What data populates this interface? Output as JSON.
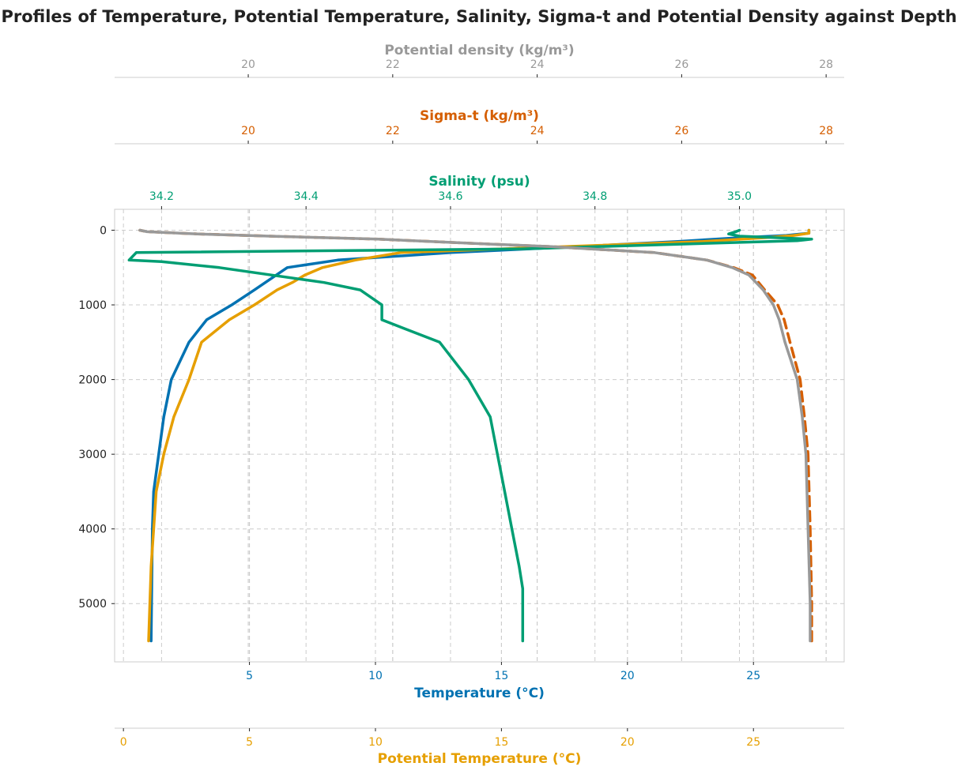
{
  "chart_data": {
    "type": "line",
    "title": "Profiles of Temperature, Potential Temperature, Salinity, Sigma-t and Potential Density against Depth",
    "grid": true,
    "y_axis": {
      "label": "",
      "range": [
        5780,
        -280
      ],
      "inverted": true,
      "ticks": [
        0,
        1000,
        2000,
        3000,
        4000,
        5000
      ]
    },
    "axes": [
      {
        "id": "temperature",
        "label": "Temperature (°C)",
        "position": "bottom",
        "color": "#0072b2",
        "range": [
          -0.35,
          28.6
        ],
        "ticks": [
          5,
          10,
          15,
          20,
          25
        ]
      },
      {
        "id": "potential_temperature",
        "label": "Potential Temperature (°C)",
        "position": "bottom-offset",
        "color": "#e69f00",
        "range": [
          -0.35,
          28.6
        ],
        "ticks": [
          0,
          5,
          10,
          15,
          20,
          25
        ]
      },
      {
        "id": "salinity",
        "label": "Salinity (psu)",
        "position": "top",
        "color": "#009e73",
        "range": [
          34.135,
          35.145
        ],
        "ticks": [
          34.2,
          34.4,
          34.6,
          34.8,
          35.0
        ]
      },
      {
        "id": "sigma_t",
        "label": "Sigma-t (kg/m³)",
        "position": "top-offset-1",
        "color": "#d55e00",
        "range": [
          18.15,
          28.25
        ],
        "ticks": [
          20,
          22,
          24,
          26,
          28
        ]
      },
      {
        "id": "potential_density",
        "label": "Potential density (kg/m³)",
        "position": "top-offset-2",
        "color": "#999999",
        "range": [
          18.15,
          28.25
        ],
        "ticks": [
          20,
          22,
          24,
          26,
          28
        ]
      }
    ],
    "series": [
      {
        "id": "temperature",
        "axis": "temperature",
        "color": "#0072b2",
        "dash": "solid",
        "points": [
          [
            1.1,
            5500
          ],
          [
            1.15,
            4000
          ],
          [
            1.2,
            3500
          ],
          [
            1.4,
            3000
          ],
          [
            1.6,
            2500
          ],
          [
            1.9,
            2000
          ],
          [
            2.6,
            1500
          ],
          [
            3.3,
            1200
          ],
          [
            4.3,
            1000
          ],
          [
            5.2,
            800
          ],
          [
            6.5,
            500
          ],
          [
            8.5,
            400
          ],
          [
            13,
            300
          ],
          [
            18,
            220
          ],
          [
            22,
            150
          ],
          [
            24.5,
            100
          ],
          [
            26.3,
            70
          ],
          [
            27.2,
            40
          ],
          [
            27.2,
            0
          ]
        ]
      },
      {
        "id": "potential_temperature",
        "axis": "potential_temperature",
        "color": "#e69f00",
        "dash": "solid",
        "points": [
          [
            1.0,
            5500
          ],
          [
            1.1,
            4500
          ],
          [
            1.3,
            3500
          ],
          [
            1.6,
            3000
          ],
          [
            2.0,
            2500
          ],
          [
            2.6,
            2000
          ],
          [
            3.1,
            1500
          ],
          [
            4.2,
            1200
          ],
          [
            5.2,
            1000
          ],
          [
            6.1,
            800
          ],
          [
            6.7,
            700
          ],
          [
            7.2,
            600
          ],
          [
            7.9,
            500
          ],
          [
            9.2,
            400
          ],
          [
            11,
            300
          ],
          [
            17.5,
            220
          ],
          [
            23,
            150
          ],
          [
            25.5,
            100
          ],
          [
            26.6,
            70
          ],
          [
            27.2,
            40
          ],
          [
            27.2,
            0
          ]
        ]
      },
      {
        "id": "salinity",
        "axis": "salinity",
        "color": "#009e73",
        "dash": "solid",
        "points": [
          [
            34.7,
            5500
          ],
          [
            34.7,
            4800
          ],
          [
            34.695,
            4500
          ],
          [
            34.685,
            4000
          ],
          [
            34.675,
            3500
          ],
          [
            34.665,
            3000
          ],
          [
            34.655,
            2500
          ],
          [
            34.625,
            2000
          ],
          [
            34.585,
            1500
          ],
          [
            34.505,
            1200
          ],
          [
            34.505,
            1000
          ],
          [
            34.475,
            800
          ],
          [
            34.425,
            700
          ],
          [
            34.28,
            500
          ],
          [
            34.2,
            420
          ],
          [
            34.155,
            400
          ],
          [
            34.165,
            300
          ],
          [
            34.7,
            250
          ],
          [
            35.08,
            140
          ],
          [
            35.1,
            120
          ],
          [
            35.0,
            80
          ],
          [
            34.985,
            50
          ],
          [
            34.995,
            20
          ],
          [
            35.0,
            0
          ]
        ]
      },
      {
        "id": "sigma_t",
        "axis": "sigma_t",
        "color": "#d55e00",
        "dash": "dashed",
        "points": [
          [
            27.8,
            5500
          ],
          [
            27.8,
            5000
          ],
          [
            27.78,
            4000
          ],
          [
            27.75,
            3000
          ],
          [
            27.7,
            2500
          ],
          [
            27.64,
            2000
          ],
          [
            27.5,
            1500
          ],
          [
            27.42,
            1200
          ],
          [
            27.33,
            1000
          ],
          [
            27.15,
            800
          ],
          [
            26.98,
            600
          ],
          [
            26.72,
            500
          ],
          [
            26.35,
            400
          ],
          [
            25.62,
            300
          ],
          [
            24.2,
            220
          ],
          [
            23.2,
            180
          ],
          [
            21.8,
            120
          ],
          [
            20.3,
            80
          ],
          [
            19.3,
            50
          ],
          [
            18.6,
            20
          ],
          [
            18.5,
            0
          ]
        ]
      },
      {
        "id": "potential_density",
        "axis": "potential_density",
        "color": "#999999",
        "dash": "solid",
        "points": [
          [
            27.78,
            5500
          ],
          [
            27.78,
            5000
          ],
          [
            27.75,
            4000
          ],
          [
            27.72,
            3000
          ],
          [
            27.67,
            2500
          ],
          [
            27.6,
            2000
          ],
          [
            27.43,
            1500
          ],
          [
            27.35,
            1200
          ],
          [
            27.27,
            1000
          ],
          [
            27.13,
            800
          ],
          [
            26.93,
            600
          ],
          [
            26.7,
            500
          ],
          [
            26.35,
            400
          ],
          [
            25.62,
            300
          ],
          [
            24.2,
            220
          ],
          [
            23.2,
            180
          ],
          [
            21.8,
            120
          ],
          [
            20.3,
            80
          ],
          [
            19.3,
            50
          ],
          [
            18.6,
            20
          ],
          [
            18.5,
            0
          ]
        ]
      }
    ]
  }
}
